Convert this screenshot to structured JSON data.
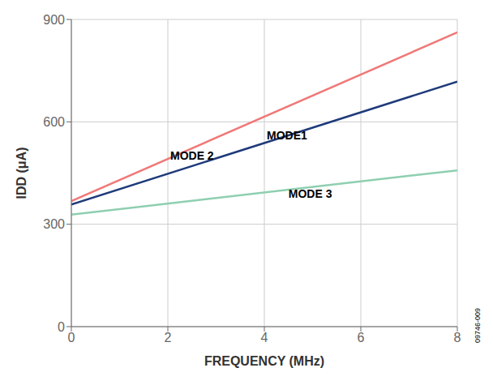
{
  "chart_data": {
    "type": "line",
    "x": [
      0,
      8
    ],
    "series": [
      {
        "color": "#1e3a7a",
        "values": [
          358,
          718
        ]
      },
      {
        "color": "#f07878",
        "values": [
          368,
          862
        ]
      },
      {
        "color": "#8ecfb0",
        "values": [
          328,
          458
        ]
      }
    ],
    "xlabel": "FREQUENCY (MHz)",
    "ylabel": "IDD (μA)",
    "xlim": [
      0,
      8
    ],
    "ylim": [
      0,
      900
    ],
    "xticks": [
      0,
      2,
      4,
      6,
      8
    ],
    "yticks": [
      0,
      300,
      600,
      900
    ],
    "grid": true,
    "annotations": [
      {
        "text": "MODE 2",
        "x": 2.05,
        "y": 490
      },
      {
        "text": "MODE1",
        "x": 4.05,
        "y": 548
      },
      {
        "text": "MODE 3",
        "x": 4.5,
        "y": 378
      }
    ],
    "watermark": "09746-009"
  }
}
